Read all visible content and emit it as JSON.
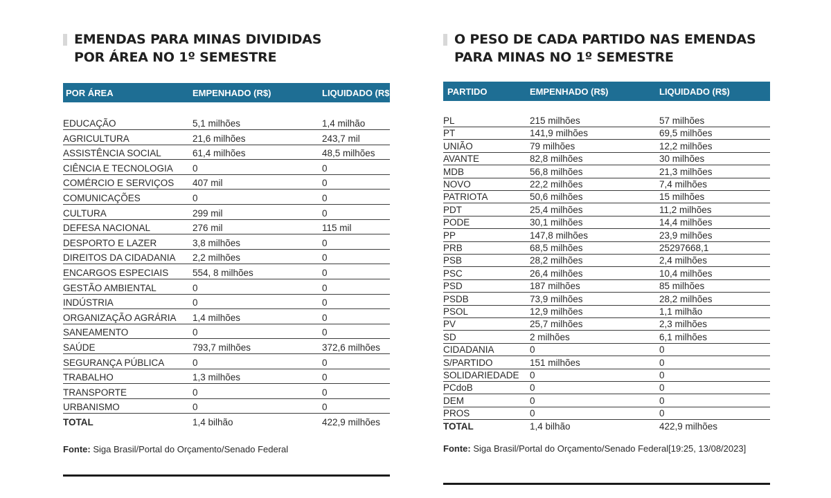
{
  "left": {
    "title_line1": "EMENDAS PARA MINAS DIVIDIDAS",
    "title_line2": "POR ÁREA NO 1º SEMESTRE",
    "headers": [
      "POR ÁREA",
      "EMPENHADO (R$)",
      "LIQUIDADO (R$)"
    ],
    "rows": [
      [
        "EDUCAÇÃO",
        "5,1 milhões",
        "1,4 milhão"
      ],
      [
        "AGRICULTURA",
        "21,6 milhões",
        "243,7 mil"
      ],
      [
        "ASSISTÊNCIA SOCIAL",
        "61,4 milhões",
        "48,5 milhões"
      ],
      [
        "CIÊNCIA E TECNOLOGIA",
        "0",
        "0"
      ],
      [
        "COMÉRCIO E SERVIÇOS",
        "407 mil",
        "0"
      ],
      [
        "COMUNICAÇÕES",
        "0",
        "0"
      ],
      [
        "CULTURA",
        "299 mil",
        "0"
      ],
      [
        "DEFESA NACIONAL",
        "276 mil",
        "115 mil"
      ],
      [
        "DESPORTO E LAZER",
        "3,8 milhões",
        " 0"
      ],
      [
        "DIREITOS DA CIDADANIA",
        "2,2 milhões",
        "0"
      ],
      [
        "ENCARGOS ESPECIAIS",
        "554, 8 milhões",
        "0"
      ],
      [
        "GESTÃO AMBIENTAL",
        "0",
        "0"
      ],
      [
        "INDÚSTRIA",
        "0",
        "0"
      ],
      [
        "ORGANIZAÇÃO AGRÁRIA",
        "1,4 milhões",
        "0"
      ],
      [
        "SANEAMENTO",
        "0",
        "0"
      ],
      [
        "SAÚDE",
        "793,7 milhões",
        "372,6 milhões"
      ],
      [
        "SEGURANÇA PÚBLICA",
        " 0",
        "0"
      ],
      [
        "TRABALHO",
        "1,3 milhões",
        "0"
      ],
      [
        "TRANSPORTE",
        "0",
        "0"
      ],
      [
        "URBANISMO",
        "0",
        "0"
      ]
    ],
    "total": [
      "TOTAL",
      "1,4 bilhão",
      "422,9 milhões"
    ],
    "source_label": "Fonte:",
    "source_text": " Siga Brasil/Portal do Orçamento/Senado Federal"
  },
  "right": {
    "title_line1": "O PESO DE CADA PARTIDO NAS EMENDAS",
    "title_line2": "PARA MINAS NO 1º SEMESTRE",
    "headers": [
      "PARTIDO",
      "EMPENHADO (R$)",
      "LIQUIDADO (R$)"
    ],
    "rows": [
      [
        "PL",
        "215 milhões",
        "57 milhões"
      ],
      [
        "PT",
        "141,9 milhões",
        "69,5 milhões"
      ],
      [
        "UNIÃO",
        "79 milhões",
        "12,2 milhões"
      ],
      [
        "AVANTE",
        "82,8 milhões",
        "30 milhões"
      ],
      [
        "MDB",
        "56,8 milhões",
        "21,3 milhões"
      ],
      [
        "NOVO",
        "22,2 milhões",
        "7,4 milhões"
      ],
      [
        "PATRIOTA",
        "50,6 milhões",
        "15 milhões"
      ],
      [
        "PDT",
        "25,4 milhões",
        "11,2 milhões"
      ],
      [
        "PODE",
        "30,1 milhões",
        "14,4 milhões"
      ],
      [
        "PP",
        "147,8 milhões",
        "23,9 milhões"
      ],
      [
        "PRB",
        "68,5 milhões",
        "25297668,1"
      ],
      [
        "PSB",
        "28,2 milhões",
        "2,4 milhões"
      ],
      [
        "PSC",
        "26,4 milhões",
        "10,4 milhões"
      ],
      [
        "PSD",
        "187 milhões",
        "85 milhões"
      ],
      [
        "PSDB",
        "73,9 milhões",
        "28,2 milhões"
      ],
      [
        "PSOL",
        "12,9 milhões",
        "1,1 milhão"
      ],
      [
        "PV",
        "25,7 milhões",
        "2,3 milhões"
      ],
      [
        "SD",
        "2 milhões",
        "6,1 milhões"
      ],
      [
        "CIDADANIA",
        "0",
        "0"
      ],
      [
        "S/PARTIDO",
        "151 milhões",
        "0"
      ],
      [
        "SOLIDARIEDADE",
        "0",
        "0"
      ],
      [
        "PCdoB",
        "0",
        "0"
      ],
      [
        "DEM",
        "0",
        "0"
      ],
      [
        "PROS",
        "0",
        "0"
      ]
    ],
    "total": [
      "TOTAL",
      "1,4 bilhão",
      "422,9 milhões"
    ],
    "source_label": "Fonte:",
    "source_text": " Siga Brasil/Portal do Orçamento/Senado Federal[19:25, 13/08/2023]"
  }
}
